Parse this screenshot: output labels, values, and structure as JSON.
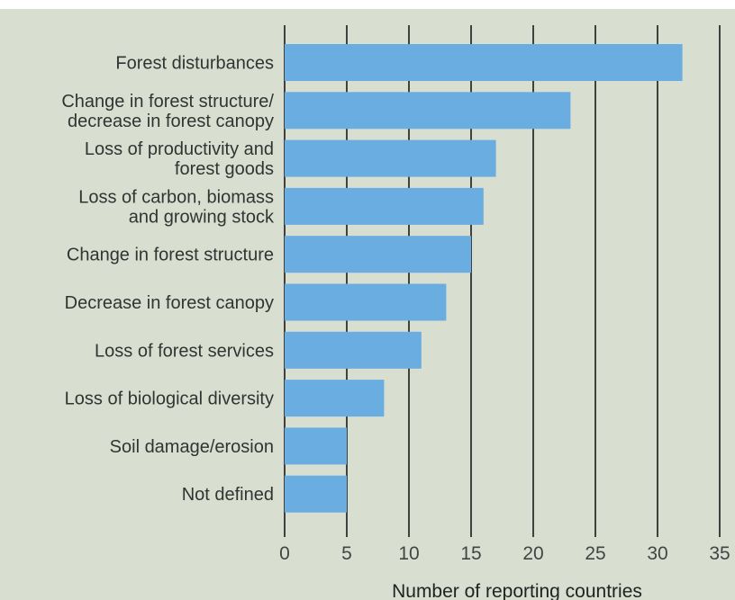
{
  "colors": {
    "background": "#d8dfd0",
    "bar": "#6aade0",
    "gridline": "#1a1a1a",
    "text": "#333333"
  },
  "chart_data": {
    "type": "bar",
    "orientation": "horizontal",
    "title": "",
    "xlabel": "Number of reporting countries",
    "ylabel": "",
    "xlim": [
      0,
      35
    ],
    "xticks": [
      0,
      5,
      10,
      15,
      20,
      25,
      30,
      35
    ],
    "grid": "vertical",
    "categories": [
      [
        "Forest disturbances"
      ],
      [
        "Change in forest structure/",
        "decrease in forest canopy"
      ],
      [
        "Loss of productivity and",
        "forest goods"
      ],
      [
        "Loss of carbon, biomass",
        "and growing stock"
      ],
      [
        "Change in forest structure"
      ],
      [
        "Decrease in forest canopy"
      ],
      [
        "Loss of forest services"
      ],
      [
        "Loss of biological diversity"
      ],
      [
        "Soil damage/erosion"
      ],
      [
        "Not defined"
      ]
    ],
    "values": [
      32,
      23,
      17,
      16,
      15,
      13,
      11,
      8,
      5,
      5
    ]
  }
}
